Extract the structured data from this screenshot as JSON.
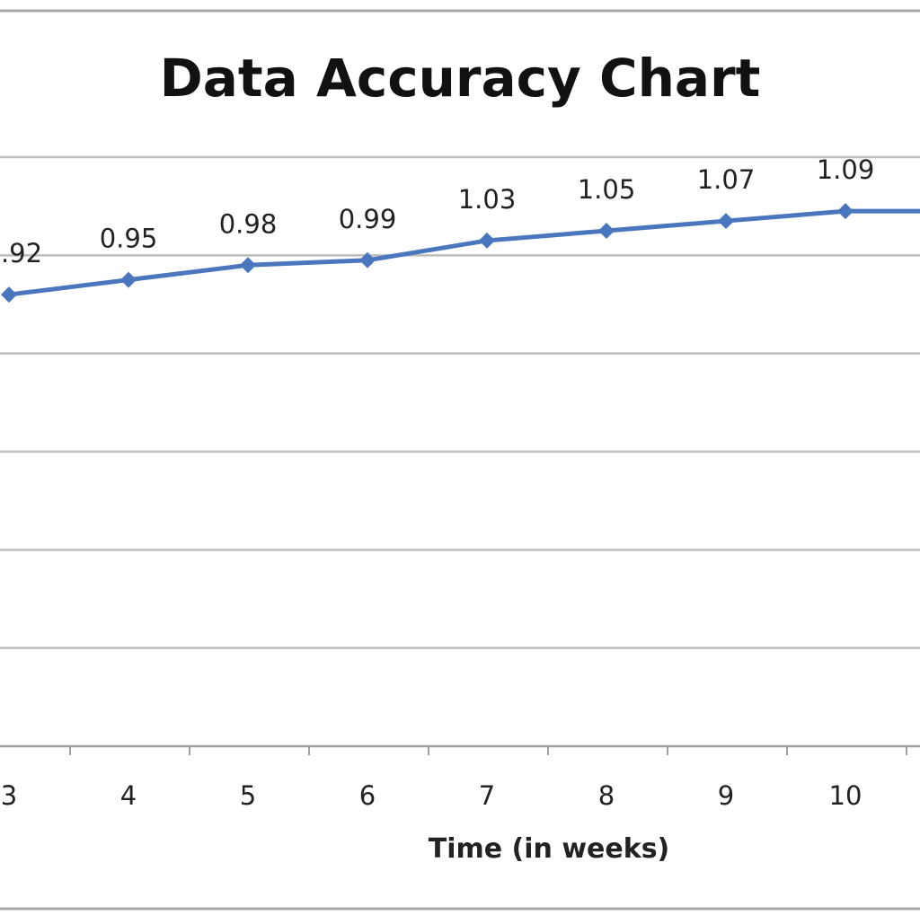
{
  "chart_data": {
    "type": "line",
    "title": "Data Accuracy Chart",
    "xlabel": "Time (in weeks)",
    "ylabel": "",
    "categories": [
      "3",
      "4",
      "5",
      "6",
      "7",
      "8",
      "9",
      "10"
    ],
    "series": [
      {
        "values": [
          0.92,
          0.95,
          0.98,
          0.99,
          1.03,
          1.05,
          1.07,
          1.09
        ],
        "data_labels": [
          ".92",
          "0.95",
          "0.98",
          "0.99",
          "1.03",
          "1.05",
          "1.07",
          "1.09"
        ],
        "trailing_value": 1.09,
        "color": "#4a76bd"
      }
    ],
    "ylim": [
      0,
      1.2
    ],
    "y_gridline_step": 0.2,
    "grid": true,
    "legend": "none"
  }
}
